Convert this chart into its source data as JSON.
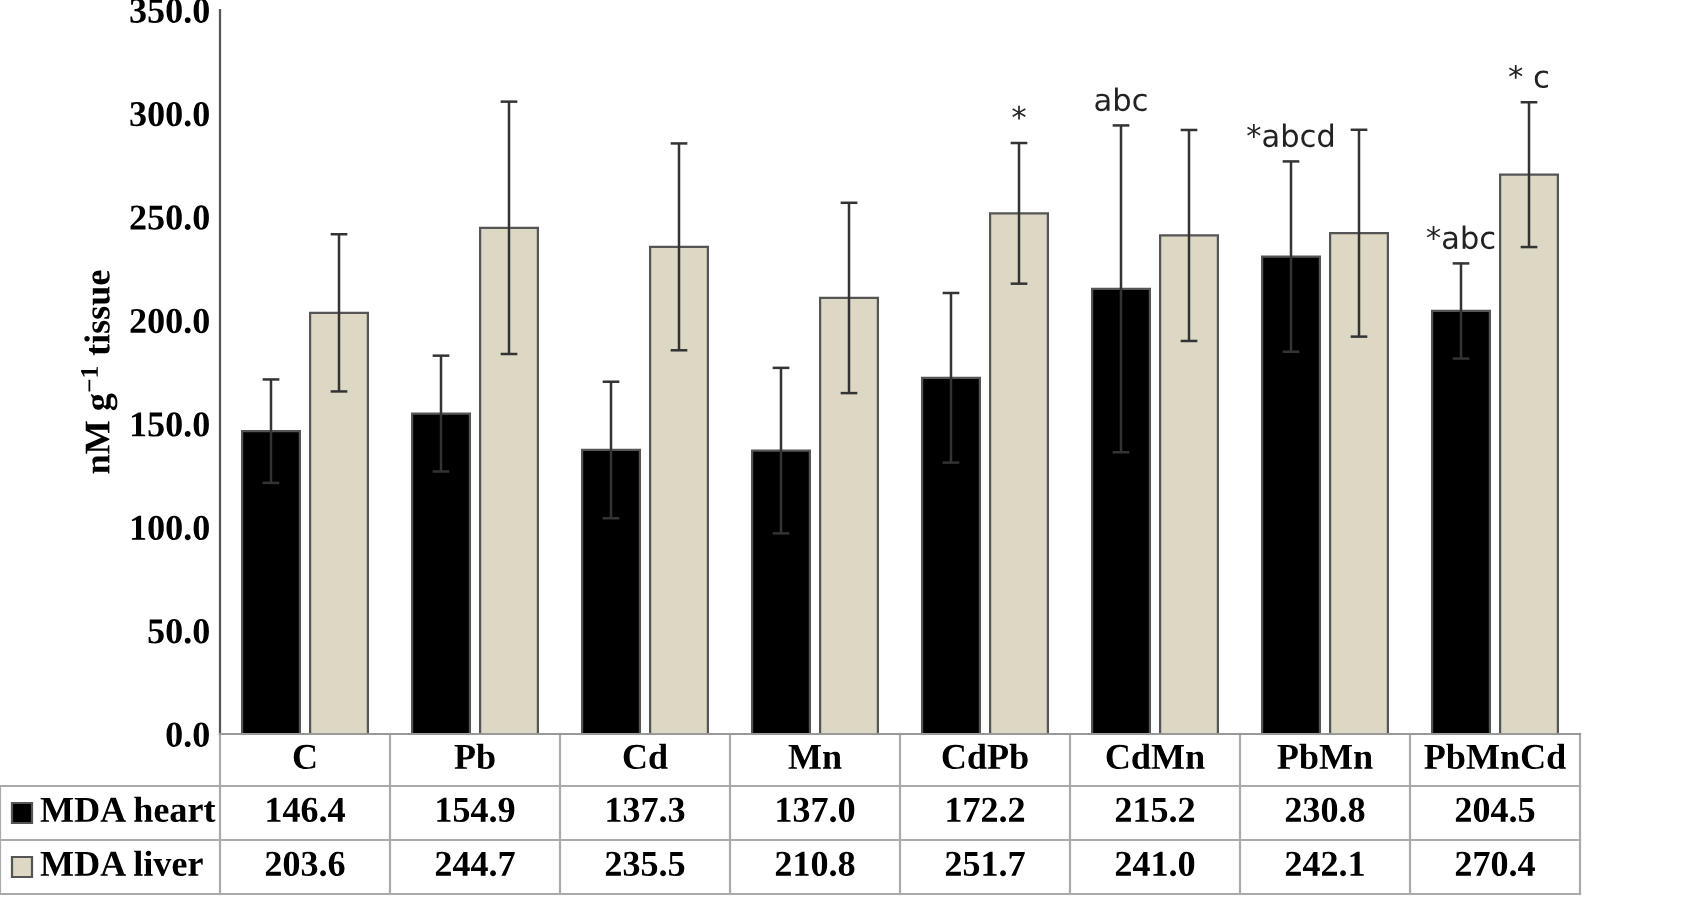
{
  "chart_data": {
    "type": "bar",
    "ylabel": "nM g$^{−1}$ tissue",
    "categories": [
      "C",
      "Pb",
      "Cd",
      "Mn",
      "CdPb",
      "CdMn",
      "PbMn",
      "PbMnCd"
    ],
    "series": [
      {
        "name": "MDA heart",
        "color": "#000000",
        "values": [
          146.4,
          154.9,
          137.3,
          137.0,
          172.2,
          215.2,
          230.8,
          204.5
        ],
        "errors": [
          25,
          28,
          33,
          40,
          41,
          79,
          46,
          23
        ],
        "value_labels": [
          "146.4",
          "154.9",
          "137.3",
          "137.0",
          "172.2",
          "215.2",
          "230.8",
          "204.5"
        ]
      },
      {
        "name": "MDA liver",
        "color": "#ddd8c4",
        "values": [
          203.6,
          244.7,
          235.5,
          210.8,
          251.7,
          241.0,
          242.1,
          270.4
        ],
        "errors": [
          38,
          61,
          50,
          46,
          34,
          51,
          50,
          35
        ],
        "value_labels": [
          "203.6",
          "244.7",
          "235.5",
          "210.8",
          "251.7",
          "241.0",
          "242.1",
          "270.4"
        ]
      }
    ],
    "ylim": [
      0,
      350
    ],
    "yticks": [
      {
        "value": 0,
        "label": "0.0"
      },
      {
        "value": 50,
        "label": "50.0"
      },
      {
        "value": 100,
        "label": "100.0"
      },
      {
        "value": 150,
        "label": "150.0"
      },
      {
        "value": 200,
        "label": "200.0"
      },
      {
        "value": 250,
        "label": "250.0"
      },
      {
        "value": 300,
        "label": "300.0"
      },
      {
        "value": 350,
        "label": "350.0"
      }
    ],
    "annotations": [
      "*",
      "abc",
      "*abcd",
      {
        "text": "*abc",
        "x": "PbMnCd",
        "y": 204.5
      },
      {
        "text": "* c",
        "x": "PbMnCd",
        "y": 270.4
      }
    ],
    "legend": "bottom",
    "grid": false
  }
}
